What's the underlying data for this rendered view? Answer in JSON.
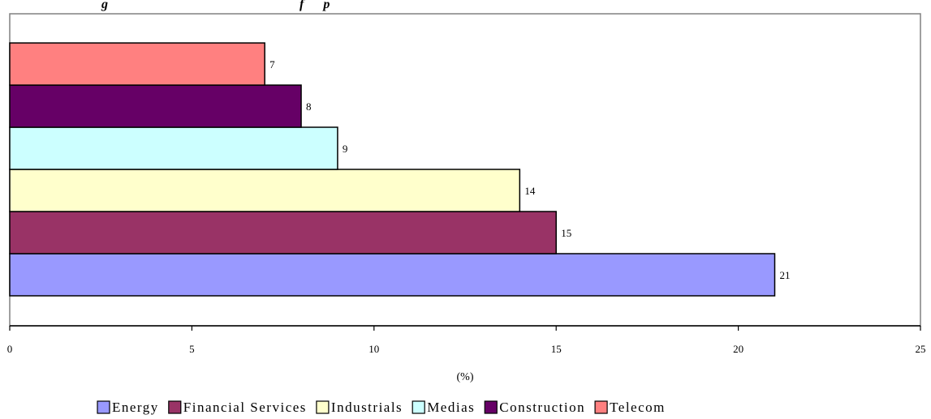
{
  "chart_data": {
    "type": "bar",
    "orientation": "horizontal",
    "title": "g                                                           f      p",
    "categories": [
      "Energy",
      "Financial Services",
      "Industrials",
      "Medias",
      "Construction",
      "Telecom"
    ],
    "values": [
      21,
      15,
      14,
      9,
      8,
      7
    ],
    "data_labels": [
      "21",
      "15",
      "14",
      "9",
      "8",
      "7"
    ],
    "colors": [
      "#9999FF",
      "#993366",
      "#FFFFCC",
      "#CCFFFF",
      "#660066",
      "#FF8080"
    ],
    "xlabel": "(%)",
    "ylabel": "",
    "xlim": [
      0,
      25
    ],
    "xticks": [
      0,
      5,
      10,
      15,
      20,
      25
    ],
    "xtick_labels": [
      "0",
      "5",
      "10",
      "15",
      "20",
      "25"
    ],
    "grid": false,
    "legend_position": "bottom",
    "legend": [
      "Energy",
      "Financial Services",
      "Industrials",
      "Medias",
      "Construction",
      "Telecom"
    ]
  }
}
